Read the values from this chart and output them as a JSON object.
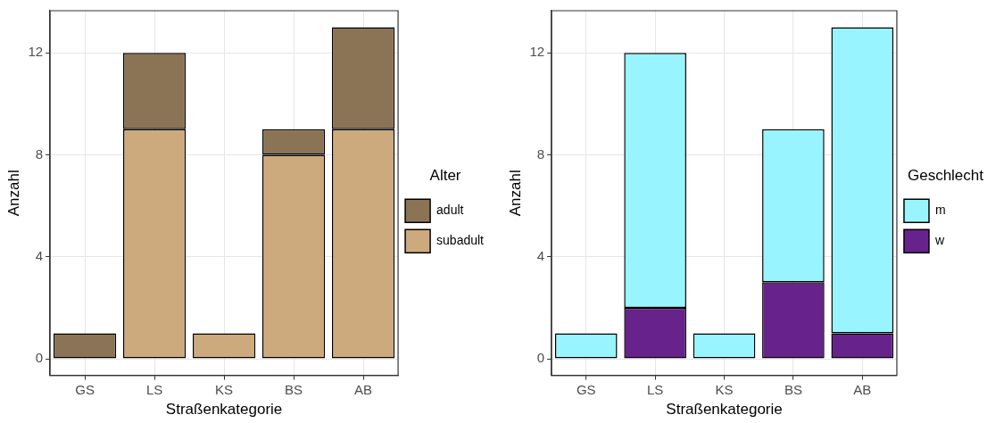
{
  "chart_data": [
    {
      "type": "bar",
      "stacked": true,
      "xlabel": "Straßenkategorie",
      "ylabel": "Anzahl",
      "legend_title": "Alter",
      "legend": "right",
      "grid": true,
      "categories": [
        "GS",
        "LS",
        "KS",
        "BS",
        "AB"
      ],
      "ylim": [
        -0.65,
        13.65
      ],
      "yticks": [
        0,
        4,
        8,
        12
      ],
      "series": [
        {
          "name": "subadult",
          "color": "#cdaa7d",
          "values": [
            0,
            9,
            1,
            8,
            9
          ]
        },
        {
          "name": "adult",
          "color": "#8b7355",
          "values": [
            1,
            3,
            0,
            1,
            4
          ]
        }
      ]
    },
    {
      "type": "bar",
      "stacked": true,
      "xlabel": "Straßenkategorie",
      "ylabel": "Anzahl",
      "legend_title": "Geschlecht",
      "legend": "right",
      "grid": true,
      "categories": [
        "GS",
        "LS",
        "KS",
        "BS",
        "AB"
      ],
      "ylim": [
        -0.65,
        13.65
      ],
      "yticks": [
        0,
        4,
        8,
        12
      ],
      "series": [
        {
          "name": "w",
          "color": "#68228b",
          "values": [
            0,
            2,
            0,
            3,
            1
          ]
        },
        {
          "name": "m",
          "color": "#98f5ff",
          "values": [
            1,
            10,
            1,
            6,
            12
          ]
        }
      ]
    }
  ]
}
